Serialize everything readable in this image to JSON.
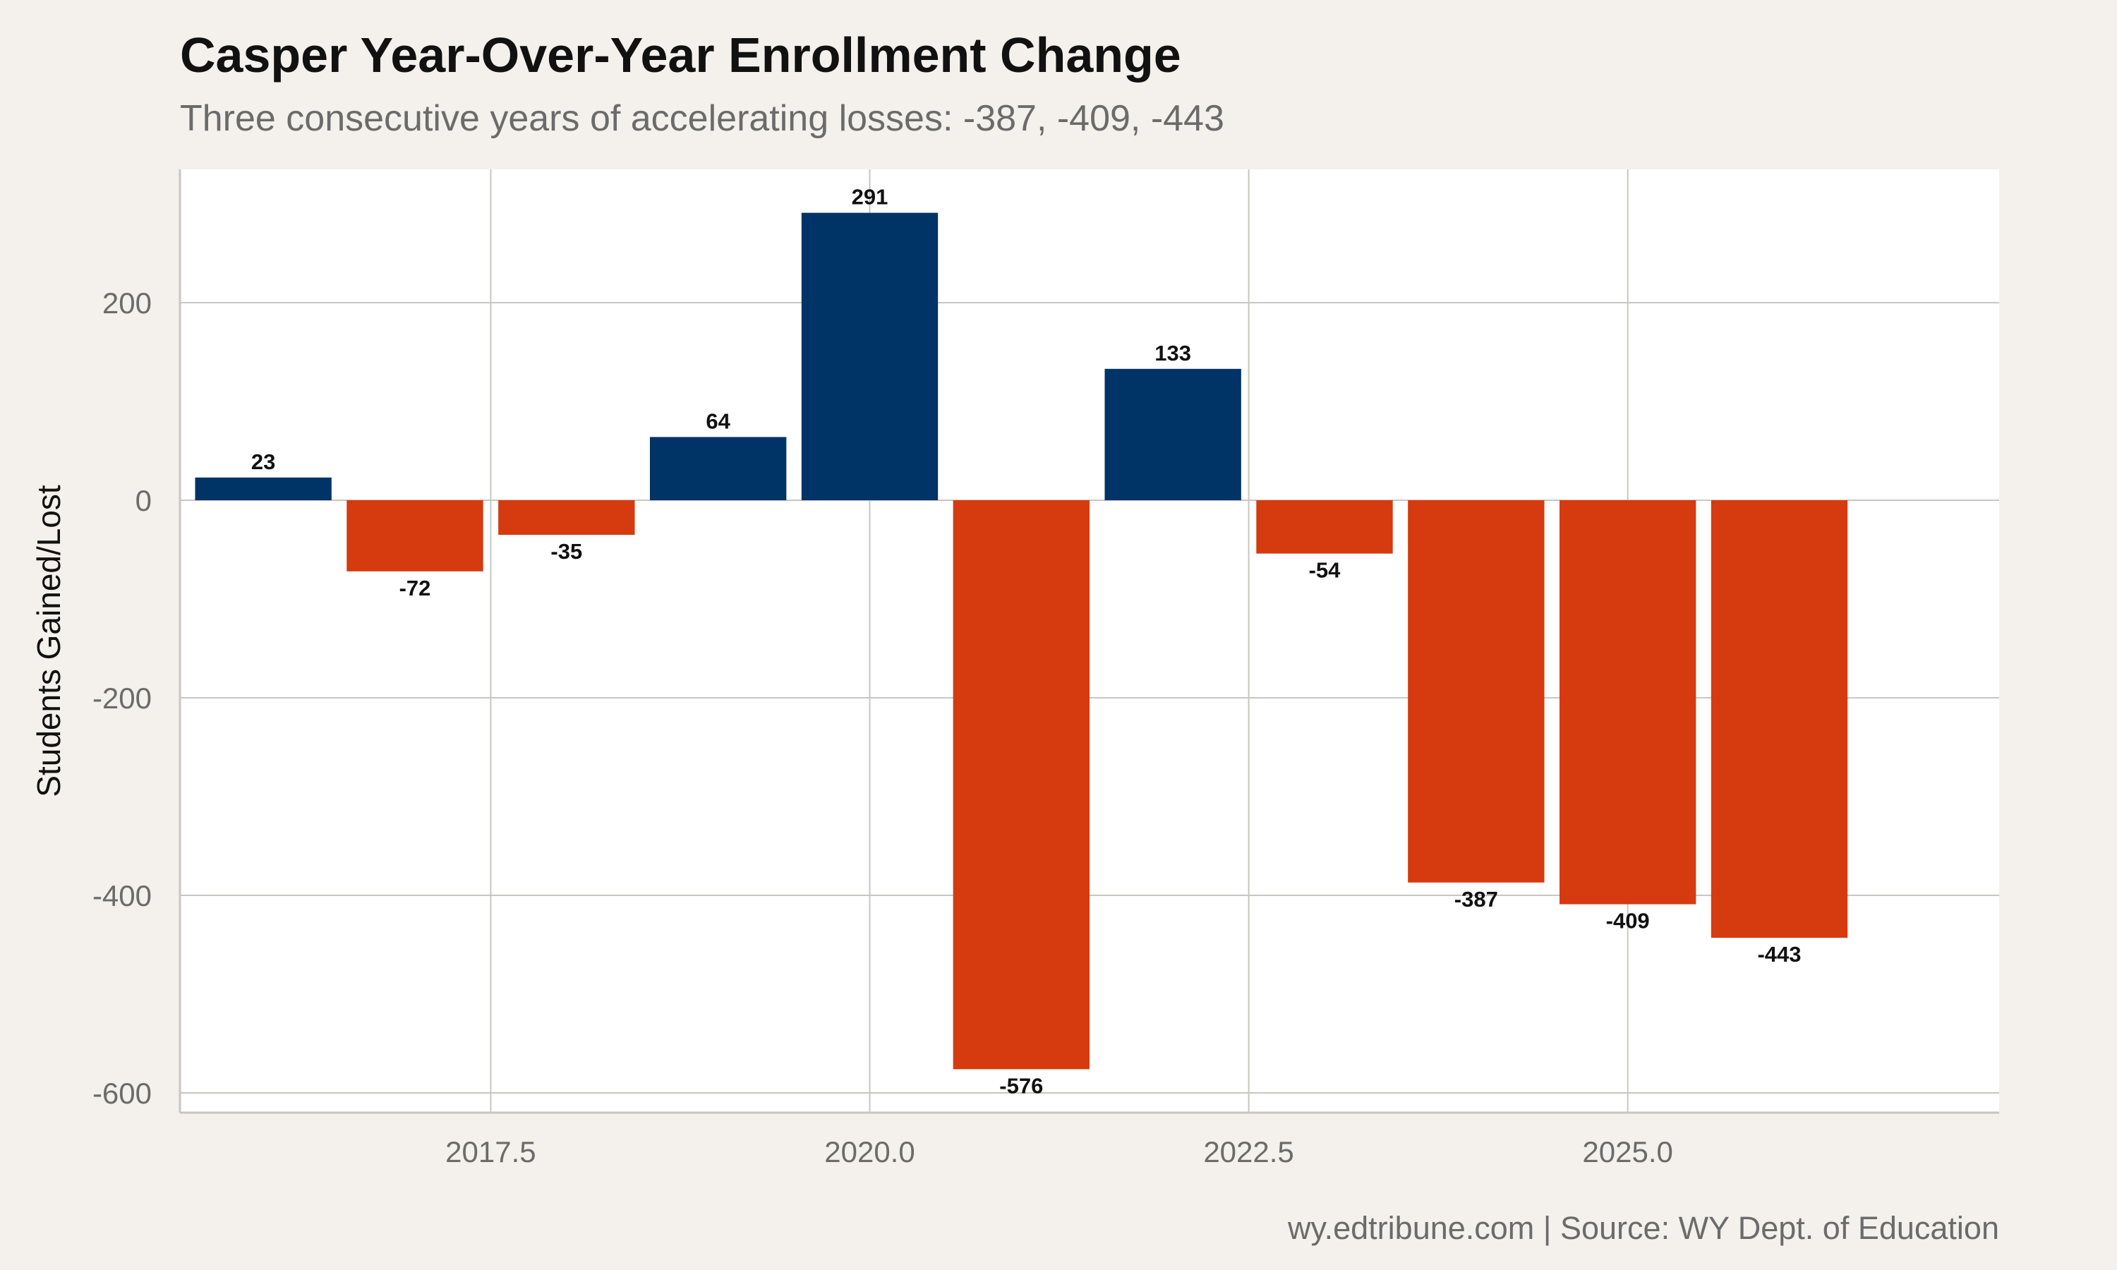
{
  "header": {
    "title": "Casper Year-Over-Year Enrollment Change",
    "subtitle": "Three consecutive years of accelerating losses: -387, -409, -443"
  },
  "footer": {
    "caption": "wy.edtribune.com | Source: WY Dept. of Education"
  },
  "colors": {
    "gain": "#003366",
    "loss": "#d63a0f",
    "panel": "#ffffff",
    "page": "#f4f1ec",
    "grid": "#c8c6c1"
  },
  "chart_data": {
    "type": "bar",
    "x": [
      2016,
      2017,
      2018,
      2019,
      2020,
      2021,
      2022,
      2023,
      2024,
      2025,
      2026
    ],
    "values": [
      23,
      -72,
      -35,
      64,
      291,
      -576,
      133,
      -54,
      -387,
      -409,
      -443
    ],
    "data_labels": [
      "23",
      "-72",
      "-35",
      "64",
      "291",
      "-576",
      "133",
      "-54",
      "-387",
      "-409",
      "-443"
    ],
    "xlabel": "",
    "ylabel": "Students Gained/Lost",
    "xlim": [
      2015.45,
      2027.45
    ],
    "ylim": [
      -620,
      335
    ],
    "x_ticks": [
      2017.5,
      2020.0,
      2022.5,
      2025.0
    ],
    "x_tick_labels": [
      "2017.5",
      "2020.0",
      "2022.5",
      "2025.0"
    ],
    "y_ticks": [
      200,
      0,
      -200,
      -400,
      -600
    ],
    "y_tick_labels": [
      "200",
      "0",
      "-200",
      "-400",
      "-600"
    ],
    "grid": true,
    "legend": "none"
  }
}
